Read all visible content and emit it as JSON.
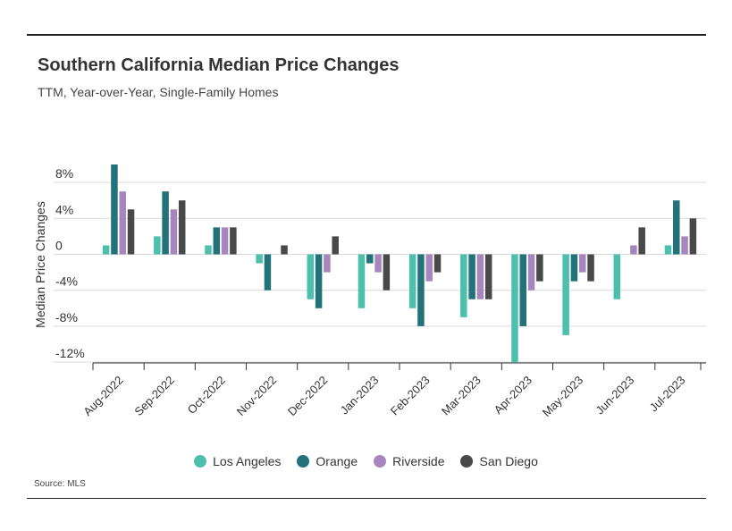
{
  "chart_data": {
    "type": "bar",
    "title": "Southern California Median Price Changes",
    "subtitle": "TTM, Year-over-Year, Single-Family Homes",
    "source": "Source: MLS",
    "xlabel": "",
    "ylabel": "Median Price Changes",
    "ylim": [
      -12,
      10
    ],
    "yticks": [
      8,
      4,
      0,
      -4,
      -8,
      -12
    ],
    "ytick_labels": [
      "8%",
      "4%",
      "0",
      "-4%",
      "-8%",
      "-12%"
    ],
    "grid": true,
    "legend_position": "bottom-center",
    "categories": [
      "Aug-2022",
      "Sep-2022",
      "Oct-2022",
      "Nov-2022",
      "Dec-2022",
      "Jan-2023",
      "Feb-2023",
      "Mar-2023",
      "Apr-2023",
      "May-2023",
      "Jun-2023",
      "Jul-2023"
    ],
    "series": [
      {
        "name": "Los Angeles",
        "color": "#4dbfad",
        "values": [
          1,
          2,
          1,
          -1,
          -5,
          -6,
          -6,
          -7,
          -12,
          -9,
          -5,
          1
        ]
      },
      {
        "name": "Orange",
        "color": "#22727a",
        "values": [
          10,
          7,
          3,
          -4,
          -6,
          -1,
          -8,
          -5,
          -8,
          -3,
          0,
          6
        ]
      },
      {
        "name": "Riverside",
        "color": "#a786bf",
        "values": [
          7,
          5,
          3,
          0,
          -2,
          -2,
          -3,
          -5,
          -4,
          -2,
          1,
          2
        ]
      },
      {
        "name": "San Diego",
        "color": "#494949",
        "values": [
          5,
          6,
          3,
          1,
          2,
          -4,
          -2,
          -5,
          -3,
          -3,
          3,
          4
        ]
      }
    ]
  }
}
